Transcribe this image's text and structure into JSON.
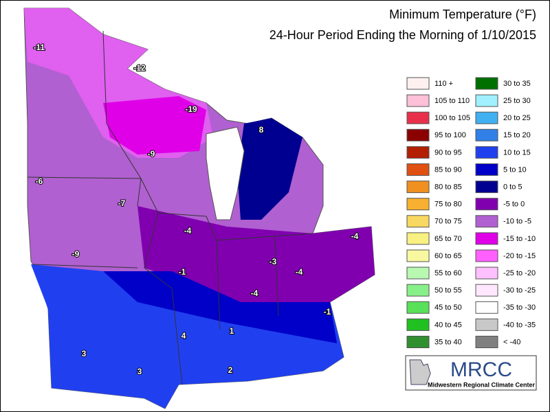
{
  "header": {
    "title": "Minimum Temperature (°F)",
    "subtitle": "24-Hour Period Ending the Morning of 1/10/2015"
  },
  "legend": [
    {
      "label": "110 +",
      "color": "#fff0f0"
    },
    {
      "label": "105 to 110",
      "color": "#ffc0d8"
    },
    {
      "label": "100 to 105",
      "color": "#e8304a"
    },
    {
      "label": "95 to 100",
      "color": "#8b0000"
    },
    {
      "label": "90 to 95",
      "color": "#b22000"
    },
    {
      "label": "85 to 90",
      "color": "#e05010"
    },
    {
      "label": "80 to 85",
      "color": "#f09020"
    },
    {
      "label": "75 to 80",
      "color": "#f8b030"
    },
    {
      "label": "70 to 75",
      "color": "#f8d860"
    },
    {
      "label": "65 to 70",
      "color": "#f8f080"
    },
    {
      "label": "60 to 65",
      "color": "#f8f8a0"
    },
    {
      "label": "55 to 60",
      "color": "#b8f8b0"
    },
    {
      "label": "50 to 55",
      "color": "#88f088"
    },
    {
      "label": "45 to 50",
      "color": "#58e058"
    },
    {
      "label": "40 to 45",
      "color": "#20c020"
    },
    {
      "label": "35 to 40",
      "color": "#309030"
    },
    {
      "label": "30 to 35",
      "color": "#007000"
    },
    {
      "label": "25 to 30",
      "color": "#a0f0ff"
    },
    {
      "label": "20 to 25",
      "color": "#40b0f0"
    },
    {
      "label": "15 to 20",
      "color": "#3080e8"
    },
    {
      "label": "10 to 15",
      "color": "#2040f0"
    },
    {
      "label": "5 to 10",
      "color": "#0000c8"
    },
    {
      "label": "0 to 5",
      "color": "#000090"
    },
    {
      "label": "-5 to 0",
      "color": "#8000b0"
    },
    {
      "label": "-10 to -5",
      "color": "#b060d0"
    },
    {
      "label": "-15 to -10",
      "color": "#e000e8"
    },
    {
      "label": "-20 to -15",
      "color": "#ff60ff"
    },
    {
      "label": "-25 to -20",
      "color": "#ffc0ff"
    },
    {
      "label": "-30 to -25",
      "color": "#ffe8ff"
    },
    {
      "label": "-35 to -30",
      "color": "#ffffff"
    },
    {
      "label": "-40 to -35",
      "color": "#c8c8c8"
    },
    {
      "label": "< -40",
      "color": "#808080"
    }
  ],
  "map": {
    "labels": [
      -11,
      -12,
      -19,
      -9,
      -6,
      -7,
      -9,
      -4,
      -1,
      -3,
      -4,
      -4,
      -4,
      -1,
      8,
      4,
      3,
      3,
      1,
      2
    ]
  },
  "logo": {
    "name": "MRCC",
    "caption": "Midwestern Regional Climate Center"
  }
}
